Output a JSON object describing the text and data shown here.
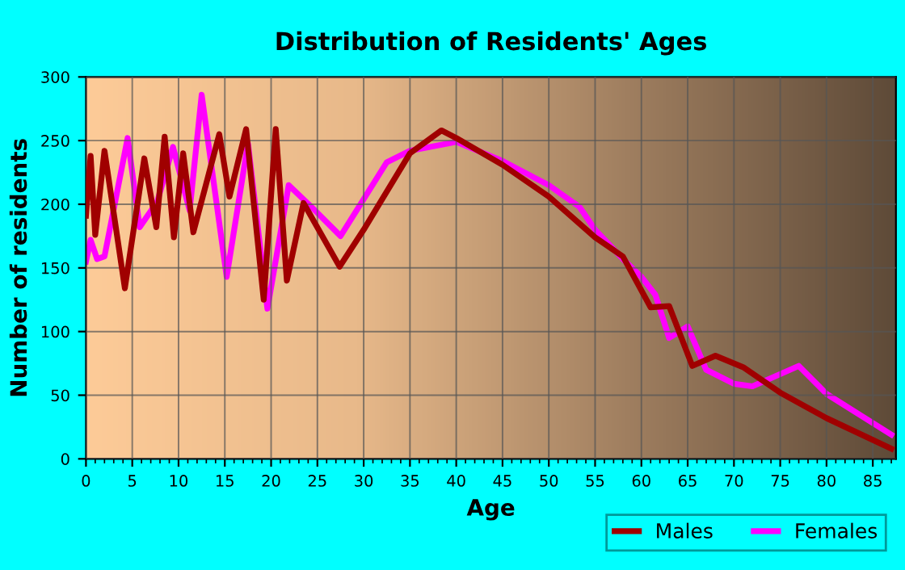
{
  "chart_data": {
    "type": "line",
    "title": "Distribution of Residents' Ages",
    "xlabel": "Age",
    "ylabel": "Number of residents",
    "xlim": [
      0,
      87.5
    ],
    "ylim": [
      0,
      300
    ],
    "xticks": [
      0,
      5,
      10,
      15,
      20,
      25,
      30,
      35,
      40,
      45,
      50,
      55,
      60,
      65,
      70,
      75,
      80,
      85
    ],
    "yticks": [
      0,
      50,
      100,
      150,
      200,
      250,
      300
    ],
    "grid": true,
    "legend": "bottom right",
    "line_style": "solid",
    "marker": "none",
    "series": [
      {
        "name": "Males",
        "color": "#a00000",
        "x": [
          0,
          0.5,
          1,
          2,
          4.2,
          6.3,
          7.6,
          8.5,
          9.5,
          10.5,
          11.6,
          14.4,
          15.5,
          17.3,
          19.2,
          20.5,
          21.7,
          23.5,
          27.4,
          30,
          35,
          38.4,
          40,
          45,
          50,
          55,
          58,
          61,
          63,
          65.5,
          68,
          71,
          75,
          80,
          87
        ],
        "values": [
          191,
          238,
          176,
          242,
          134,
          236,
          182,
          253,
          174,
          240,
          178,
          255,
          206,
          259,
          125,
          259,
          140,
          201,
          151,
          180,
          240,
          258,
          252,
          231,
          206,
          174,
          159,
          119,
          120,
          73,
          81,
          72,
          52,
          32,
          8
        ]
      },
      {
        "name": "Females",
        "color": "#ff00ff",
        "x": [
          0,
          0.5,
          1.2,
          2,
          4.5,
          5.8,
          7.7,
          9.4,
          11.2,
          12.5,
          15.2,
          17.5,
          19.6,
          21.9,
          24.2,
          27.5,
          32.5,
          35,
          40,
          45,
          50,
          53.3,
          55,
          58,
          60,
          61.5,
          63,
          65,
          67,
          70,
          72,
          77,
          80,
          87
        ],
        "values": [
          155,
          172,
          157,
          159,
          252,
          182,
          202,
          245,
          195,
          286,
          143,
          248,
          118,
          215,
          199,
          175,
          233,
          242,
          249,
          234,
          215,
          198,
          180,
          157,
          143,
          129,
          95,
          104,
          70,
          59,
          57,
          73,
          51,
          19
        ]
      }
    ]
  }
}
